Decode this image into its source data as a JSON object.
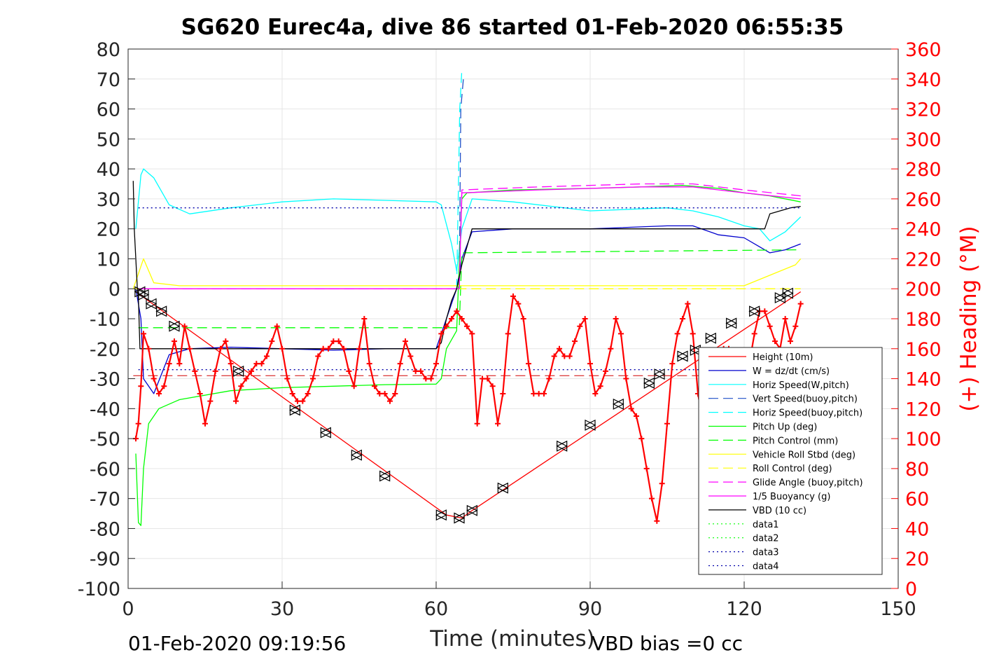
{
  "chart_data": {
    "type": "line",
    "title": "SG620 Eurec4a, dive 86 started 01-Feb-2020 06:55:35",
    "xlabel": "Time (minutes)",
    "ylabel": "",
    "y2label": "(+) Heading (°M)",
    "xlim": [
      0,
      150
    ],
    "ylim": [
      -100,
      80
    ],
    "y2lim": [
      0,
      360
    ],
    "xticks": [
      0,
      30,
      60,
      90,
      120,
      150
    ],
    "yticks": [
      80,
      70,
      60,
      50,
      40,
      30,
      20,
      10,
      0,
      -10,
      -20,
      -30,
      -40,
      -50,
      -60,
      -70,
      -80,
      -90,
      -100
    ],
    "y2ticks": [
      360,
      340,
      320,
      300,
      280,
      260,
      240,
      220,
      200,
      180,
      160,
      140,
      120,
      100,
      80,
      60,
      40,
      20,
      0
    ],
    "grid": true,
    "legend_position": "bottom-right",
    "footer_left": "01-Feb-2020 09:19:56",
    "footer_right": "VBD bias =0 cc",
    "colors": {
      "height": "#ff0000",
      "w": "#0000cd",
      "horiz_speed": "#00ffff",
      "green": "#00ff00",
      "yellow": "#ffff00",
      "magenta": "#ff00ff",
      "vbd": "#000000",
      "heading": "#ff0000"
    },
    "series": [
      {
        "name": "Height (10m)",
        "color": "#ff0000",
        "style": "solid",
        "x": [
          1.5,
          62,
          65,
          67,
          131
        ],
        "y": [
          -1,
          -75.5,
          -76.5,
          -74,
          -1
        ]
      },
      {
        "name": "W = dz/dt (cm/s)",
        "color": "#0000cd",
        "style": "solid",
        "x": [
          1.5,
          2.5,
          3,
          5,
          8,
          12,
          20,
          30,
          40,
          50,
          60,
          61,
          63,
          64,
          65,
          67,
          75,
          90,
          105,
          110,
          115,
          120,
          123,
          125,
          128,
          131
        ],
        "y": [
          0,
          -10,
          -30,
          -35,
          -22,
          -20,
          -19.5,
          -20,
          -20.5,
          -20,
          -20,
          -15,
          -5,
          0,
          10,
          19,
          20,
          20,
          21,
          21,
          18,
          17,
          14,
          12,
          13,
          15
        ]
      },
      {
        "name": "Horiz Speed(W,pitch)",
        "color": "#00ffff",
        "style": "solid",
        "x": [
          1.5,
          2.5,
          3,
          5,
          8,
          12,
          20,
          30,
          40,
          50,
          60,
          61,
          63,
          64,
          65,
          67,
          75,
          90,
          105,
          110,
          115,
          120,
          123,
          125,
          128,
          131
        ],
        "y": [
          20,
          38,
          40,
          37,
          28,
          25,
          27,
          29,
          30,
          29.5,
          29,
          28,
          15,
          6,
          20,
          30,
          29,
          26,
          27,
          26,
          24,
          21,
          20,
          16,
          19,
          24
        ]
      },
      {
        "name": "Vert Speed(buoy,pitch)",
        "color": "#1e50c8",
        "style": "dashed",
        "x": [
          63.3,
          64.5,
          64.8,
          65.3
        ],
        "y": [
          0,
          0,
          60,
          70
        ]
      },
      {
        "name": "Horiz Speed(buoy,pitch)",
        "color": "#00ffff",
        "style": "dashed",
        "x": [
          64,
          64.6,
          65
        ],
        "y": [
          0,
          60,
          73
        ]
      },
      {
        "name": "Pitch Up (deg)",
        "color": "#00ff00",
        "style": "solid",
        "x": [
          1.5,
          2,
          2.5,
          3,
          4,
          6,
          10,
          20,
          30,
          40,
          50,
          60,
          61,
          62,
          64,
          65,
          66,
          75,
          90,
          100,
          108,
          115,
          120,
          125,
          131
        ],
        "y": [
          -55,
          -78,
          -79,
          -60,
          -45,
          -40,
          -37,
          -34,
          -33,
          -32.5,
          -32,
          -31.8,
          -30,
          -20,
          -14,
          30,
          32,
          33,
          33.5,
          34,
          34.5,
          33.5,
          32,
          31,
          29
        ]
      },
      {
        "name": "Pitch Control (mm)",
        "color": "#00ff00",
        "style": "dashed",
        "x": [
          2,
          62,
          64.5,
          65,
          131
        ],
        "y": [
          -13,
          -13,
          -13,
          12,
          13
        ]
      },
      {
        "name": "Vehicle Roll Stbd (deg)",
        "color": "#ffff00",
        "style": "solid",
        "x": [
          1,
          3,
          5,
          10,
          20,
          30,
          40,
          50,
          60,
          65,
          70,
          80,
          90,
          100,
          110,
          120,
          130,
          131
        ],
        "y": [
          0,
          10,
          2,
          1,
          1,
          1,
          1,
          1,
          1,
          1,
          1,
          1,
          1,
          1,
          1,
          1,
          8,
          10
        ]
      },
      {
        "name": "Roll Control (deg)",
        "color": "#ffff00",
        "style": "dashed",
        "x": [
          1,
          131
        ],
        "y": [
          0,
          0
        ]
      },
      {
        "name": "Glide Angle (buoy,pitch)",
        "color": "#ff00ff",
        "style": "dashed",
        "x": [
          2,
          62,
          64.5,
          65,
          80,
          100,
          110,
          120,
          131
        ],
        "y": [
          0,
          0,
          0,
          33,
          34,
          35,
          35,
          33,
          31
        ]
      },
      {
        "name": "1/5 Buoyancy (g)",
        "color": "#ff00ff",
        "style": "solid",
        "x": [
          2,
          62,
          64.5,
          65,
          80,
          100,
          110,
          120,
          131
        ],
        "y": [
          0,
          0,
          0,
          32,
          33,
          34,
          34,
          32,
          30
        ]
      },
      {
        "name": "VBD (10 cc)",
        "color": "#000000",
        "style": "solid",
        "x": [
          1,
          1.2,
          1.8,
          2,
          2.3,
          60,
          61,
          62,
          63,
          64,
          65,
          66,
          67,
          123,
          124,
          125,
          129,
          131
        ],
        "y": [
          36,
          20,
          0,
          -3,
          -20,
          -20,
          -18,
          -10,
          -4,
          0,
          8,
          14,
          20,
          20,
          20,
          25,
          27,
          27.5
        ]
      },
      {
        "name": "data1",
        "color": "#00ff00",
        "style": "dotted",
        "x": [],
        "y": []
      },
      {
        "name": "data2",
        "color": "#00ff00",
        "style": "dotted",
        "x": [],
        "y": []
      },
      {
        "name": "data3",
        "color": "#0000aa",
        "style": "dotted",
        "x": [
          2,
          131
        ],
        "y": [
          27,
          27
        ]
      },
      {
        "name": "data4",
        "color": "#0000aa",
        "style": "dotted",
        "x": [
          2,
          131
        ],
        "y": [
          -27,
          -27
        ]
      }
    ],
    "hline": {
      "color": "#d00000",
      "style": "dashed",
      "y": -29,
      "x": [
        1,
        131
      ]
    },
    "heading": {
      "axis": "right",
      "marker": "+",
      "color": "#ff0000",
      "x": [
        1.5,
        2,
        2.5,
        3,
        4,
        5,
        6,
        7,
        8,
        9,
        10,
        11,
        12,
        13,
        14,
        15,
        16,
        17,
        18,
        19,
        20,
        21,
        22,
        23,
        24,
        25,
        26,
        27,
        28,
        29,
        30,
        31,
        32,
        33,
        34,
        35,
        36,
        37,
        38,
        39,
        40,
        41,
        42,
        43,
        44,
        45,
        46,
        47,
        48,
        49,
        50,
        51,
        52,
        53,
        54,
        55,
        56,
        57,
        58,
        59,
        60,
        61,
        62,
        63,
        64,
        65,
        66,
        67,
        68,
        69,
        70,
        71,
        72,
        73,
        74,
        75,
        76,
        77,
        78,
        79,
        80,
        81,
        82,
        83,
        84,
        85,
        86,
        87,
        88,
        89,
        90,
        91,
        92,
        93,
        94,
        95,
        96,
        97,
        98,
        99,
        100,
        101,
        102,
        103,
        104,
        105,
        106,
        107,
        108,
        109,
        110,
        111,
        112,
        113,
        114,
        115,
        116,
        117,
        118,
        119,
        120,
        121,
        122,
        123,
        124,
        125,
        126,
        127,
        128,
        129,
        130,
        131
      ],
      "y": [
        100,
        110,
        135,
        170,
        160,
        140,
        130,
        135,
        150,
        165,
        150,
        175,
        160,
        145,
        130,
        110,
        125,
        145,
        160,
        165,
        150,
        125,
        135,
        140,
        145,
        150,
        150,
        155,
        165,
        175,
        160,
        140,
        130,
        125,
        125,
        130,
        140,
        155,
        160,
        160,
        165,
        165,
        160,
        145,
        135,
        160,
        180,
        150,
        135,
        130,
        130,
        125,
        130,
        150,
        165,
        155,
        145,
        145,
        140,
        140,
        150,
        170,
        175,
        180,
        185,
        180,
        175,
        170,
        110,
        140,
        140,
        135,
        110,
        130,
        170,
        195,
        190,
        180,
        150,
        130,
        130,
        130,
        140,
        155,
        160,
        155,
        155,
        165,
        175,
        180,
        150,
        130,
        135,
        145,
        160,
        180,
        170,
        140,
        120,
        115,
        100,
        80,
        60,
        45,
        70,
        110,
        150,
        170,
        180,
        190,
        170,
        130,
        110,
        125,
        130,
        155,
        160,
        160,
        150,
        140,
        135,
        150,
        170,
        185,
        185,
        175,
        165,
        160,
        180,
        165,
        175,
        190
      ]
    },
    "markers": {
      "color": "#000000",
      "note": "triangles along the depth profile",
      "x": [
        2.3,
        3,
        4.5,
        6.5,
        9,
        21.5,
        32.5,
        38.5,
        44.5,
        50,
        61,
        64.5,
        67,
        73,
        84.5,
        90,
        95.5,
        101.5,
        103.5,
        108,
        110.5,
        113.5,
        117.5,
        122,
        127,
        128.5
      ],
      "y": [
        -1,
        -2,
        -5,
        -7.5,
        -12.5,
        -27.5,
        -40.5,
        -48,
        -55.5,
        -62.5,
        -75.5,
        -76.5,
        -74,
        -66.5,
        -52.5,
        -45.5,
        -38.5,
        -31.5,
        -28.5,
        -22.5,
        -20.5,
        -16.5,
        -11.5,
        -7.5,
        -3,
        -1.5
      ]
    }
  }
}
